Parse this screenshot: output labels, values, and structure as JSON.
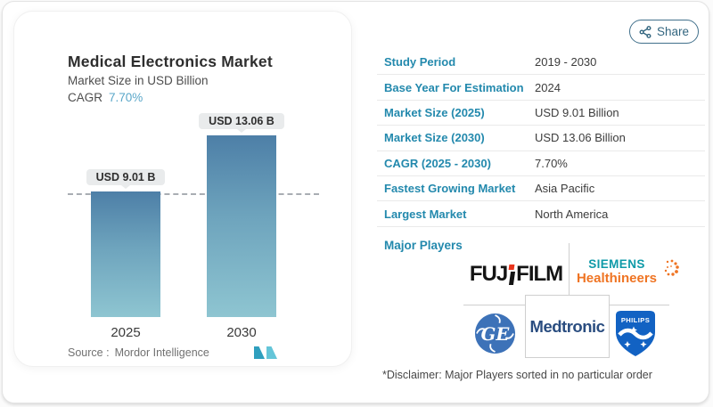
{
  "share": {
    "label": "Share"
  },
  "chart_card": {
    "title": "Medical Electronics Market",
    "subtitle": "Market Size in USD Billion",
    "cagr_label": "CAGR",
    "cagr_value": "7.70%",
    "source_label": "Source :",
    "source_value": "Mordor Intelligence"
  },
  "chart_data": {
    "type": "bar",
    "title": "Medical Electronics Market",
    "subtitle": "Market Size in USD Billion",
    "categories": [
      "2025",
      "2030"
    ],
    "values": [
      9.01,
      13.06
    ],
    "bar_labels": [
      "USD 9.01 B",
      "USD 13.06 B"
    ],
    "unit": "USD Billion",
    "cagr_percent": 7.7,
    "ylim": [
      0,
      13.06
    ],
    "grid": false,
    "legend": false,
    "annotations": {
      "dashed_reference_line_at": 9.01
    },
    "bar_colors": {
      "top": "#4d7fa7",
      "bottom": "#8ec5d1"
    }
  },
  "table": {
    "rows": [
      {
        "label": "Study Period",
        "value": "2019 - 2030"
      },
      {
        "label": "Base Year For Estimation",
        "value": "2024"
      },
      {
        "label": "Market Size (2025)",
        "value": "USD 9.01 Billion"
      },
      {
        "label": "Market Size (2030)",
        "value": "USD 13.06 Billion"
      },
      {
        "label": "CAGR (2025 - 2030)",
        "value": "7.70%"
      },
      {
        "label": "Fastest Growing Market",
        "value": "Asia Pacific"
      },
      {
        "label": "Largest Market",
        "value": "North America"
      }
    ]
  },
  "major_players": {
    "heading": "Major Players",
    "players": [
      "FUJIFILM",
      "Siemens Healthineers",
      "GE",
      "Medtronic",
      "Philips"
    ],
    "fujifilm": {
      "part1": "FUJ",
      "part2": "FILM"
    },
    "siemens": {
      "line1": "SIEMENS",
      "line2": "Healthineers"
    },
    "ge": {
      "monogram": "GE"
    },
    "medtronic": {
      "name": "Medtronic"
    },
    "philips": {
      "name": "PHILIPS"
    },
    "disclaimer": "*Disclaimer: Major Players sorted in no particular order"
  },
  "colors": {
    "label_teal": "#2389ad",
    "cagr_blue": "#5aa7c9",
    "share_border": "#41708b",
    "siemens_teal": "#0e9aa8",
    "siemens_orange": "#ef7423",
    "fujifilm_red": "#e8341c",
    "ge_blue": "#3d72b8",
    "medtronic_navy": "#2a4d80",
    "philips_blue": "#1262c3",
    "mordor_teal_dark": "#2f9fbe",
    "mordor_teal_light": "#64c5d8"
  }
}
